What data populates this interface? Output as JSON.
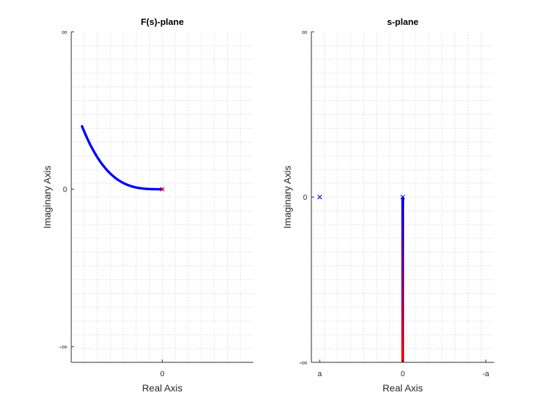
{
  "chart_data": [
    {
      "type": "scatter",
      "title": "F(s)-plane",
      "xlabel": "Real Axis",
      "ylabel": "Imaginary Axis",
      "xticks": [
        {
          "v": 0,
          "label": "0"
        }
      ],
      "yticks": [
        {
          "v": 1,
          "label": "∞"
        },
        {
          "v": 0,
          "label": "0"
        },
        {
          "v": -1,
          "label": "-∞"
        }
      ],
      "xlim": [
        -1.1,
        1.1
      ],
      "ylim": [
        -1.1,
        1.0
      ],
      "grid": true,
      "curve_endpoints": {
        "start": [
          -0.97,
          0.4
        ],
        "end": [
          0,
          0
        ]
      },
      "markers": [
        {
          "x": 0,
          "y": 0,
          "symbol": "x",
          "color": "#ff0000"
        }
      ],
      "line_color": "#0000ff"
    },
    {
      "type": "scatter",
      "title": "s-plane",
      "xlabel": "Real Axis",
      "ylabel": "Imaginary Axis",
      "xticks": [
        {
          "v": -1,
          "label": "a"
        },
        {
          "v": 0,
          "label": "0"
        },
        {
          "v": 1,
          "label": "-a"
        }
      ],
      "yticks": [
        {
          "v": 1,
          "label": "∞"
        },
        {
          "v": 0,
          "label": "0"
        },
        {
          "v": -1,
          "label": "-∞"
        }
      ],
      "xlim": [
        -1.1,
        1.1
      ],
      "ylim": [
        -1.0,
        1.0
      ],
      "grid": true,
      "segment": {
        "x": 0,
        "y_from": 0,
        "y_to": -1,
        "color_from": "#0000ff",
        "color_to": "#ff0000"
      },
      "markers": [
        {
          "x": -1,
          "y": 0,
          "symbol": "x",
          "color": "#0000ff"
        },
        {
          "x": 0,
          "y": 0,
          "symbol": "x",
          "color": "#0000ff"
        }
      ]
    }
  ]
}
